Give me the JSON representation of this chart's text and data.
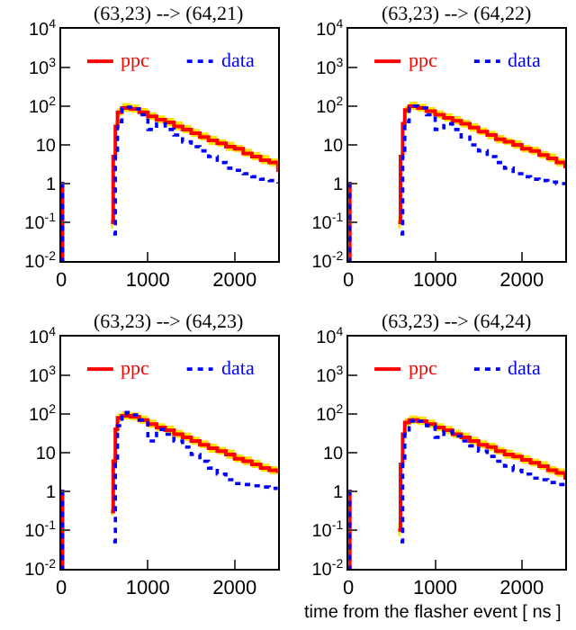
{
  "chart_data": [
    {
      "type": "step",
      "title": "(63,23) --> (64,21)",
      "legend": "top",
      "log": "y",
      "grid": false,
      "xlim": [
        0,
        2500
      ],
      "xticks": [
        0,
        1000,
        2000
      ],
      "ylim": [
        0.01,
        10000
      ],
      "yticks": [
        {
          "value": 0.01,
          "label": "10$^{-2}$"
        },
        {
          "value": 0.1,
          "label": "10$^{-1}$"
        },
        {
          "value": 1,
          "label": "1"
        },
        {
          "value": 10,
          "label": "10"
        },
        {
          "value": 100,
          "label": "10$^{2}$"
        },
        {
          "value": 1000,
          "label": "10$^{3}$"
        },
        {
          "value": 10000,
          "label": "10$^{4}$"
        }
      ],
      "x": [
        0,
        15,
        25,
        575,
        600,
        625,
        650,
        700,
        750,
        800,
        900,
        1000,
        1100,
        1200,
        1300,
        1400,
        1500,
        1600,
        1700,
        1800,
        1900,
        2000,
        2100,
        2200,
        2300,
        2400,
        2500
      ],
      "series": [
        {
          "name": "ppc",
          "color": "#ff0000",
          "line_style": "solid",
          "values": [
            1,
            0.01,
            null,
            0.1,
            5,
            30,
            70,
            90,
            90,
            85,
            70,
            55,
            45,
            38,
            30,
            25,
            20,
            16,
            13,
            11,
            9,
            8,
            6,
            5,
            4,
            3.5,
            2
          ],
          "upper": [
            null,
            null,
            null,
            0.15,
            7,
            40,
            90,
            120,
            120,
            110,
            90,
            70,
            58,
            50,
            40,
            33,
            26,
            21,
            17,
            14,
            12,
            10,
            8,
            6.5,
            5.5,
            4.5,
            3
          ],
          "lower": [
            null,
            null,
            null,
            0.07,
            4,
            24,
            56,
            72,
            72,
            68,
            56,
            44,
            36,
            30,
            24,
            20,
            16,
            13,
            10,
            9,
            7,
            6.5,
            5,
            4,
            3.2,
            2.8,
            1.6
          ]
        },
        {
          "name": "data",
          "color": "#0000ff",
          "line_style": "dotted",
          "values": [
            1,
            0.01,
            null,
            null,
            0.05,
            5,
            40,
            85,
            95,
            85,
            60,
            25,
            35,
            25,
            18,
            12,
            9,
            7,
            5,
            3.5,
            2.5,
            2.2,
            1.8,
            1.5,
            1.3,
            1.2,
            1
          ]
        }
      ]
    },
    {
      "type": "step",
      "title": "(63,23) --> (64,22)",
      "legend": "top",
      "log": "y",
      "grid": false,
      "xlim": [
        0,
        2500
      ],
      "xticks": [
        0,
        1000,
        2000
      ],
      "ylim": [
        0.01,
        10000
      ],
      "yticks": [
        {
          "value": 0.01,
          "label": "10$^{-2}$"
        },
        {
          "value": 0.1,
          "label": "10$^{-1}$"
        },
        {
          "value": 1,
          "label": "1"
        },
        {
          "value": 10,
          "label": "10"
        },
        {
          "value": 100,
          "label": "10$^{2}$"
        },
        {
          "value": 1000,
          "label": "10$^{3}$"
        },
        {
          "value": 10000,
          "label": "10$^{4}$"
        }
      ],
      "x": [
        0,
        15,
        25,
        575,
        600,
        625,
        650,
        700,
        750,
        800,
        900,
        1000,
        1100,
        1200,
        1300,
        1400,
        1500,
        1600,
        1700,
        1800,
        1900,
        2000,
        2100,
        2200,
        2300,
        2400,
        2500
      ],
      "series": [
        {
          "name": "ppc",
          "color": "#ff0000",
          "line_style": "solid",
          "values": [
            1,
            0.01,
            null,
            0.1,
            5,
            35,
            80,
            100,
            100,
            90,
            75,
            60,
            50,
            42,
            35,
            28,
            22,
            18,
            14,
            12,
            10,
            8,
            7,
            5.5,
            4.5,
            3.5,
            2.5
          ],
          "upper": [
            null,
            null,
            null,
            0.15,
            7,
            45,
            100,
            130,
            130,
            115,
            95,
            78,
            65,
            55,
            45,
            36,
            28,
            23,
            18,
            15,
            13,
            10,
            9,
            7,
            6,
            4.5,
            3.2
          ],
          "lower": [
            null,
            null,
            null,
            0.07,
            4,
            28,
            64,
            80,
            80,
            72,
            60,
            48,
            40,
            34,
            28,
            22,
            18,
            14,
            11,
            10,
            8,
            6.4,
            5.6,
            4.4,
            3.6,
            2.8,
            2
          ]
        },
        {
          "name": "data",
          "color": "#0000ff",
          "line_style": "dotted",
          "values": [
            1,
            0.01,
            null,
            null,
            0.05,
            5,
            40,
            90,
            100,
            90,
            60,
            25,
            35,
            25,
            16,
            10,
            7,
            5,
            3.5,
            2.5,
            1.8,
            1.5,
            1.3,
            1.2,
            1.1,
            1,
            1
          ]
        }
      ]
    },
    {
      "type": "step",
      "title": "(63,23) --> (64,23)",
      "legend": "top",
      "log": "y",
      "grid": false,
      "xlim": [
        0,
        2500
      ],
      "xticks": [
        0,
        1000,
        2000
      ],
      "ylim": [
        0.01,
        10000
      ],
      "yticks": [
        {
          "value": 0.01,
          "label": "10$^{-2}$"
        },
        {
          "value": 0.1,
          "label": "10$^{-1}$"
        },
        {
          "value": 1,
          "label": "1"
        },
        {
          "value": 10,
          "label": "10"
        },
        {
          "value": 100,
          "label": "10$^{2}$"
        },
        {
          "value": 1000,
          "label": "10$^{3}$"
        },
        {
          "value": 10000,
          "label": "10$^{4}$"
        }
      ],
      "x": [
        0,
        15,
        25,
        575,
        600,
        625,
        650,
        700,
        750,
        800,
        900,
        1000,
        1100,
        1200,
        1300,
        1400,
        1500,
        1600,
        1700,
        1800,
        1900,
        2000,
        2100,
        2200,
        2300,
        2400,
        2500
      ],
      "series": [
        {
          "name": "ppc",
          "color": "#ff0000",
          "line_style": "solid",
          "values": [
            1,
            0.01,
            null,
            0.3,
            6,
            40,
            80,
            90,
            90,
            85,
            70,
            55,
            45,
            38,
            30,
            25,
            20,
            16,
            13,
            11,
            9,
            7,
            6,
            5,
            4,
            3.5,
            3
          ],
          "upper": [
            null,
            null,
            null,
            0.4,
            8,
            52,
            104,
            117,
            117,
            110,
            91,
            72,
            58,
            50,
            39,
            33,
            26,
            21,
            17,
            14,
            12,
            9,
            8,
            6.5,
            5.2,
            4.5,
            3.9
          ],
          "lower": [
            null,
            null,
            null,
            0.24,
            4.8,
            32,
            64,
            72,
            72,
            68,
            56,
            44,
            36,
            30,
            24,
            20,
            16,
            13,
            10,
            9,
            7,
            5.6,
            4.8,
            4,
            3.2,
            2.8,
            2.4
          ]
        },
        {
          "name": "data",
          "color": "#0000ff",
          "line_style": "dotted",
          "values": [
            1,
            0.01,
            null,
            null,
            0.05,
            6,
            50,
            100,
            110,
            95,
            70,
            20,
            40,
            30,
            20,
            14,
            9,
            6,
            4,
            2.8,
            2,
            1.6,
            1.5,
            1.4,
            1.3,
            1.2,
            1.2
          ]
        }
      ]
    },
    {
      "type": "step",
      "title": "(63,23) --> (64,24)",
      "xlabel": "time from the flasher event [ ns ]",
      "legend": "top",
      "log": "y",
      "grid": false,
      "xlim": [
        0,
        2500
      ],
      "xticks": [
        0,
        1000,
        2000
      ],
      "ylim": [
        0.01,
        10000
      ],
      "yticks": [
        {
          "value": 0.01,
          "label": "10$^{-2}$"
        },
        {
          "value": 0.1,
          "label": "10$^{-1}$"
        },
        {
          "value": 1,
          "label": "1"
        },
        {
          "value": 10,
          "label": "10"
        },
        {
          "value": 100,
          "label": "10$^{2}$"
        },
        {
          "value": 1000,
          "label": "10$^{3}$"
        },
        {
          "value": 10000,
          "label": "10$^{4}$"
        }
      ],
      "x": [
        0,
        15,
        25,
        575,
        600,
        625,
        650,
        700,
        750,
        800,
        900,
        1000,
        1100,
        1200,
        1300,
        1400,
        1500,
        1600,
        1700,
        1800,
        1900,
        2000,
        2100,
        2200,
        2300,
        2400,
        2500
      ],
      "series": [
        {
          "name": "ppc",
          "color": "#ff0000",
          "line_style": "solid",
          "values": [
            1,
            0.01,
            null,
            0.1,
            5,
            30,
            60,
            70,
            70,
            65,
            55,
            45,
            38,
            30,
            25,
            20,
            16,
            14,
            11,
            9,
            8,
            6.5,
            5.5,
            4.5,
            3.5,
            3,
            2
          ],
          "upper": [
            null,
            null,
            null,
            0.15,
            7,
            40,
            78,
            91,
            91,
            85,
            72,
            58,
            49,
            39,
            33,
            26,
            21,
            18,
            14,
            12,
            10,
            8.5,
            7,
            6,
            4.5,
            3.9,
            2.6
          ],
          "lower": [
            null,
            null,
            null,
            0.07,
            4,
            24,
            48,
            56,
            56,
            52,
            44,
            36,
            30,
            24,
            20,
            16,
            13,
            11,
            9,
            7,
            6.4,
            5.2,
            4.4,
            3.6,
            2.8,
            2.4,
            1.6
          ]
        },
        {
          "name": "data",
          "color": "#0000ff",
          "line_style": "dotted",
          "values": [
            1,
            0.01,
            null,
            null,
            0.05,
            5,
            35,
            65,
            70,
            65,
            50,
            25,
            35,
            27,
            20,
            15,
            11,
            8,
            6,
            4.5,
            3.5,
            2.8,
            2.2,
            2,
            1.7,
            1.5,
            1.3
          ]
        }
      ]
    }
  ]
}
